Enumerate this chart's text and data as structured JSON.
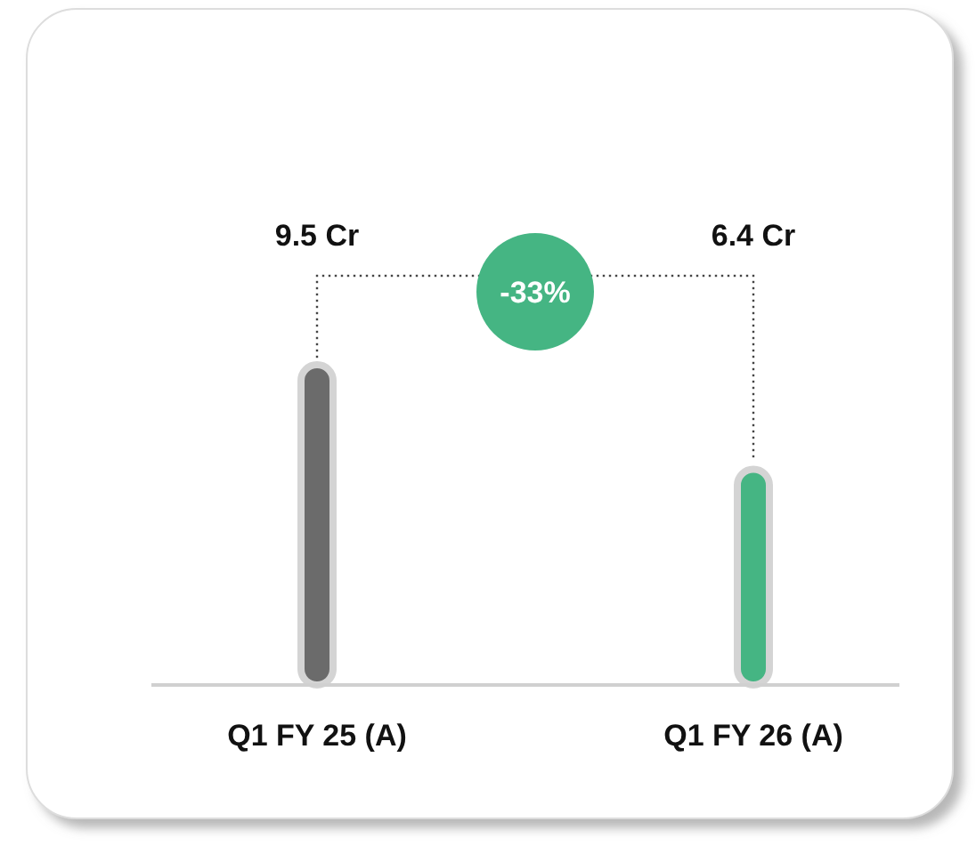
{
  "chart_data": {
    "type": "bar",
    "categories": [
      "Q1 FY 25 (A)",
      "Q1 FY 26 (A)"
    ],
    "values": [
      9.5,
      6.4
    ],
    "colors": [
      "#6b6b6b",
      "#45b583"
    ],
    "value_labels": [
      "9.5 Cr",
      "6.4 Cr"
    ],
    "relative": false,
    "annotations": [
      "-33%"
    ]
  }
}
